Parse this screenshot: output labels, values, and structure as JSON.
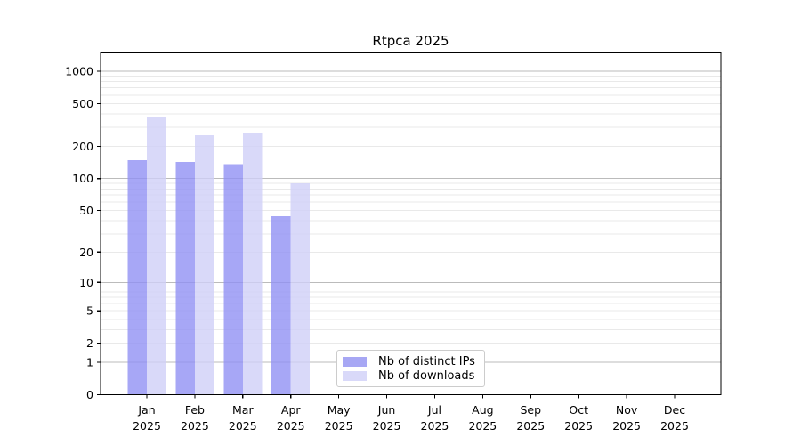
{
  "chart_data": {
    "type": "bar",
    "title": "Rtpca 2025",
    "categories": [
      "Jan",
      "Feb",
      "Mar",
      "Apr",
      "May",
      "Jun",
      "Jul",
      "Aug",
      "Sep",
      "Oct",
      "Nov",
      "Dec"
    ],
    "x_tick_second_line": "2025",
    "series": [
      {
        "name": "Nb of distinct IPs",
        "color": "#a7a7f4",
        "fill": "rgba(145,145,244,0.8)",
        "values": [
          149,
          143,
          136,
          44,
          null,
          null,
          null,
          null,
          null,
          null,
          null,
          null
        ]
      },
      {
        "name": "Nb of downloads",
        "color": "#d9d9f9",
        "fill": "rgba(208,208,248,0.8)",
        "values": [
          370,
          253,
          268,
          90,
          null,
          null,
          null,
          null,
          null,
          null,
          null,
          null
        ]
      }
    ],
    "y_ticks": [
      0,
      1,
      2,
      5,
      10,
      20,
      50,
      100,
      200,
      500,
      1000
    ],
    "scale": "log1p",
    "ylim": [
      0,
      1200
    ],
    "grid": "horizontal major and log-minor lines",
    "legend_position": "inside lower-center",
    "colors": {
      "grid_major": "#bbbbbb",
      "grid_minor": "#e9e9e9",
      "axis": "#000000",
      "tick_text": "#000000",
      "legend_border": "#cccccc",
      "background": "#ffffff"
    }
  }
}
